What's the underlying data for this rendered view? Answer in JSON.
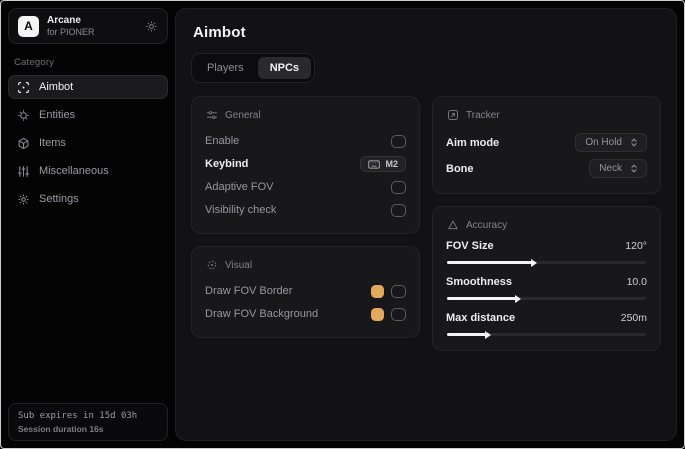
{
  "accent": "#e3aa5e",
  "sidebar": {
    "brand": {
      "logo_letter": "A",
      "title": "Arcane",
      "subtitle": "for PIONER",
      "settings_icon": "gear-icon"
    },
    "category_label": "Category",
    "items": [
      {
        "label": "Aimbot",
        "icon": "crosshair-icon",
        "active": true
      },
      {
        "label": "Entities",
        "icon": "entities-icon",
        "active": false
      },
      {
        "label": "Items",
        "icon": "box-icon",
        "active": false
      },
      {
        "label": "Miscellaneous",
        "icon": "sliders-icon",
        "active": false
      },
      {
        "label": "Settings",
        "icon": "gear-icon",
        "active": false
      }
    ],
    "footer": {
      "line1": "Sub expires in 15d 03h",
      "line2": "Session duration 16s"
    }
  },
  "main": {
    "title": "Aimbot",
    "tabs": [
      {
        "label": "Players",
        "active": false
      },
      {
        "label": "NPCs",
        "active": true
      }
    ],
    "sections": {
      "general": {
        "title": "General",
        "rows": [
          {
            "label": "Enable",
            "control": "checkbox",
            "checked": false
          },
          {
            "label": "Keybind",
            "control": "keybind",
            "value": "M2"
          },
          {
            "label": "Adaptive FOV",
            "control": "checkbox",
            "checked": false
          },
          {
            "label": "Visibility check",
            "control": "checkbox",
            "checked": false
          }
        ]
      },
      "visual": {
        "title": "Visual",
        "rows": [
          {
            "label": "Draw FOV Border",
            "swatch": "#e3aa5e",
            "checked": false
          },
          {
            "label": "Draw FOV Background",
            "swatch": "#e3aa5e",
            "checked": false
          }
        ]
      },
      "tracker": {
        "title": "Tracker",
        "rows": [
          {
            "label": "Aim mode",
            "value": "On Hold"
          },
          {
            "label": "Bone",
            "value": "Neck"
          }
        ]
      },
      "accuracy": {
        "title": "Accuracy",
        "rows": [
          {
            "label": "FOV Size",
            "value": "120°",
            "percent": 44
          },
          {
            "label": "Smoothness",
            "value": "10.0",
            "percent": 36
          },
          {
            "label": "Max distance",
            "value": "250m",
            "percent": 21
          }
        ]
      }
    }
  }
}
